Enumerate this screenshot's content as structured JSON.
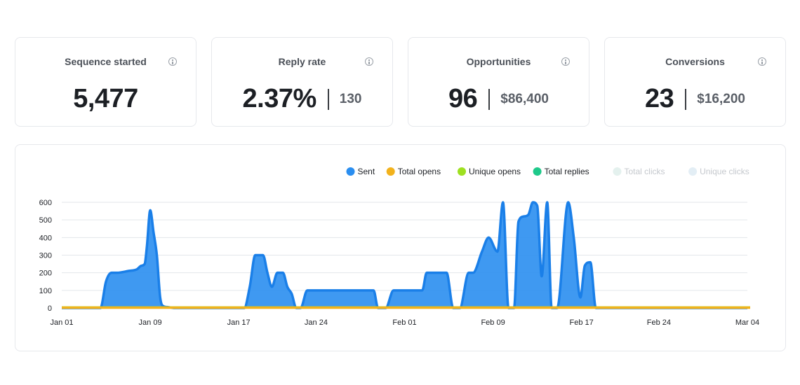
{
  "cards": [
    {
      "title": "Sequence started",
      "value": "5,477",
      "secondary": ""
    },
    {
      "title": "Reply rate",
      "value": "2.37%",
      "secondary": "130"
    },
    {
      "title": "Opportunities",
      "value": "96",
      "secondary": "$86,400"
    },
    {
      "title": "Conversions",
      "value": "23",
      "secondary": "$16,200"
    }
  ],
  "colors": {
    "sent": "#2a8ef0",
    "sent_stroke": "#1a7fe8",
    "total_opens": "#f2b21c",
    "unique_opens": "#9ee020",
    "total_replies": "#1ec98a",
    "total_clicks": "#e4f1ee",
    "unique_clicks": "#e3eef5",
    "grid": "#e3e6ea"
  },
  "chart_data": {
    "type": "area",
    "legend": [
      {
        "name": "Sent",
        "color": "#2a8ef0",
        "muted": false
      },
      {
        "name": "Total opens",
        "color": "#f2b21c",
        "muted": false
      },
      {
        "name": "Unique opens",
        "color": "#9ee020",
        "muted": false
      },
      {
        "name": "Total replies",
        "color": "#1ec98a",
        "muted": false
      },
      {
        "name": "Total clicks",
        "color": "#e4f1ee",
        "muted": true
      },
      {
        "name": "Unique clicks",
        "color": "#e3eef5",
        "muted": true
      }
    ],
    "legend_position": "top-right",
    "grid": true,
    "ylim": [
      0,
      600
    ],
    "y_ticks": [
      0,
      100,
      200,
      300,
      400,
      500,
      600
    ],
    "x_tick_labels": [
      "Jan 01",
      "Jan 09",
      "Jan 17",
      "Jan 24",
      "Feb 01",
      "Feb 09",
      "Feb 17",
      "Feb 24",
      "Mar 04"
    ],
    "x_tick_positions": [
      0,
      8,
      16,
      23,
      31,
      39,
      47,
      54,
      62
    ],
    "series": [
      {
        "name": "Sent",
        "x": [
          0,
          3.5,
          4.0,
          4.5,
          5.0,
          6.0,
          6.8,
          7.2,
          7.5,
          7.7,
          8.0,
          8.3,
          8.6,
          8.9,
          9.2,
          9.6,
          10.2,
          16.5,
          17.0,
          17.5,
          18.2,
          18.6,
          19.0,
          19.5,
          20.0,
          20.4,
          20.8,
          21.2,
          21.6,
          22.2,
          22.8,
          23.2,
          23.8,
          24.5,
          28.2,
          28.6,
          29.3,
          30.0,
          30.5,
          31.5,
          32.6,
          33.0,
          34.8,
          35.4,
          36.0,
          36.8,
          37.2,
          38.0,
          38.6,
          39.4,
          39.9,
          40.4,
          40.9,
          41.3,
          41.8,
          42.2,
          42.6,
          43.0,
          43.4,
          43.9,
          44.3,
          44.8,
          45.8,
          46.3,
          46.9,
          47.3,
          47.8,
          48.3,
          48.7,
          49.1,
          49.6,
          50.0,
          50.4,
          50.8,
          51.2,
          51.6,
          52.0,
          52.4,
          52.8,
          53.3,
          53.8,
          54.2,
          54.7,
          55.1,
          55.6,
          56.3,
          56.8,
          57.2,
          57.7,
          58.2,
          59.0,
          62.0
        ],
        "values": [
          0,
          0,
          150,
          200,
          200,
          210,
          220,
          240,
          250,
          350,
          555,
          430,
          300,
          60,
          10,
          5,
          0,
          0,
          120,
          300,
          300,
          200,
          120,
          200,
          200,
          120,
          80,
          0,
          0,
          100,
          100,
          100,
          100,
          100,
          100,
          0,
          0,
          100,
          100,
          100,
          100,
          200,
          200,
          0,
          0,
          200,
          200,
          320,
          400,
          320,
          600,
          0,
          0,
          490,
          520,
          530,
          600,
          580,
          180,
          600,
          0,
          0,
          600,
          400,
          60,
          240,
          260,
          0,
          0,
          0,
          0,
          0,
          0,
          0,
          0,
          0,
          0,
          0,
          0,
          0,
          0,
          0,
          0,
          0,
          0,
          0,
          0,
          0,
          0,
          0,
          0,
          0
        ]
      }
    ],
    "baseline_series": [
      {
        "name": "Total opens",
        "values_note": ""
      },
      {
        "name": "Unique opens",
        "values_note": ""
      },
      {
        "name": "Total replies",
        "values_note": ""
      }
    ]
  }
}
